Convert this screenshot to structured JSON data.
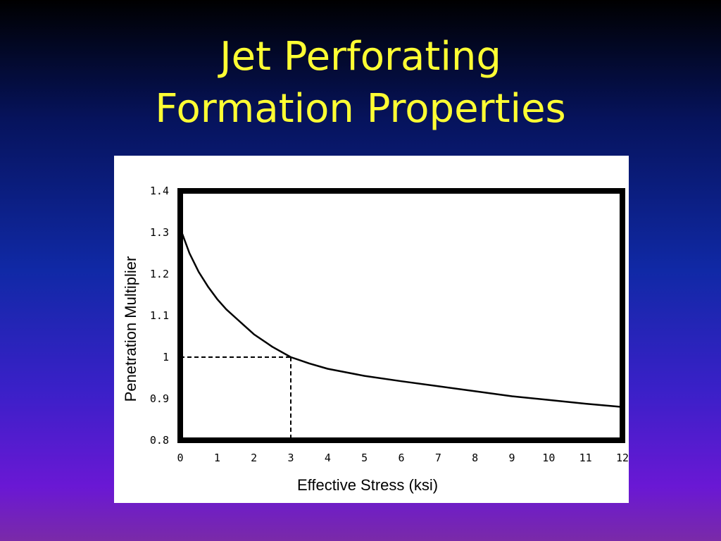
{
  "slide": {
    "title_line1": "Jet Perforating",
    "title_line2": "Formation Properties"
  },
  "colors": {
    "title": "#ffff33",
    "background_top": "#000000",
    "background_bottom": "#7a2aa8",
    "panel": "#ffffff",
    "plot": "#000000"
  },
  "chart_data": {
    "type": "line",
    "title": "",
    "xlabel": "Effective Stress (ksi)",
    "ylabel": "Penetration Multiplier",
    "xlim": [
      0,
      12
    ],
    "ylim": [
      0.8,
      1.4
    ],
    "x_ticks": [
      "0",
      "1",
      "2",
      "3",
      "4",
      "5",
      "6",
      "7",
      "8",
      "9",
      "10",
      "11",
      "12"
    ],
    "y_ticks": [
      "0.8",
      "0.9",
      "1",
      "1.1",
      "1.2",
      "1.3",
      "1.4"
    ],
    "grid": false,
    "legend": "none",
    "series": [
      {
        "x": [
          0,
          0.25,
          0.5,
          0.75,
          1,
          1.25,
          1.5,
          1.75,
          2,
          2.5,
          3,
          3.5,
          4,
          5,
          6,
          7,
          8,
          9,
          10,
          11,
          12
        ],
        "y": [
          1.31,
          1.25,
          1.205,
          1.17,
          1.14,
          1.115,
          1.095,
          1.075,
          1.055,
          1.025,
          1.0,
          0.985,
          0.972,
          0.955,
          0.942,
          0.93,
          0.918,
          0.906,
          0.897,
          0.888,
          0.88
        ]
      }
    ],
    "reference": {
      "x": 3,
      "y": 1
    }
  }
}
